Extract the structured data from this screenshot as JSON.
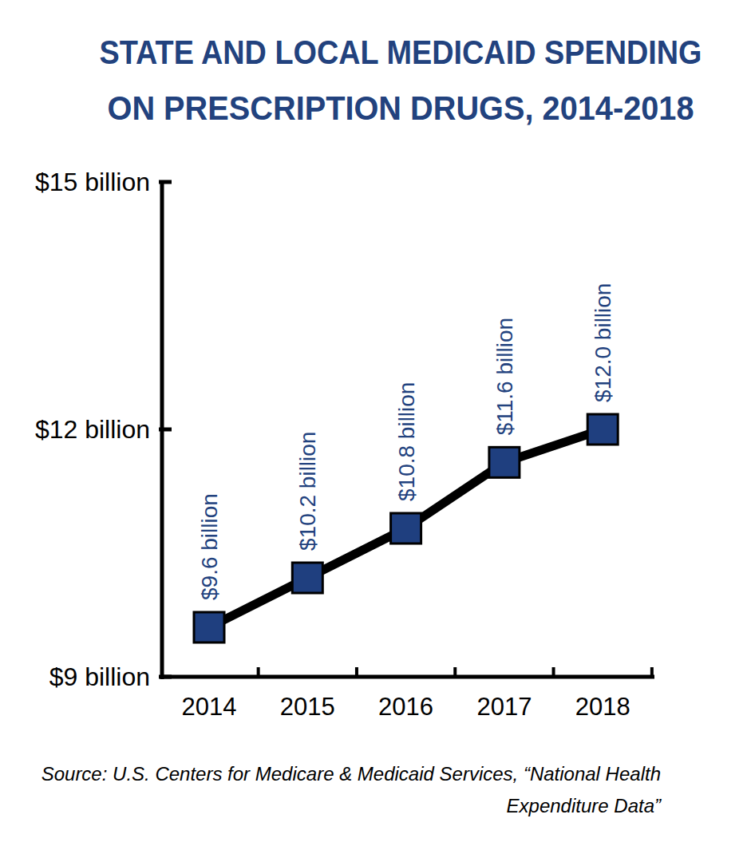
{
  "chart_data": {
    "type": "line",
    "title": [
      "STATE AND LOCAL MEDICAID SPENDING",
      "ON PRESCRIPTION DRUGS, 2014-2018"
    ],
    "categories": [
      "2014",
      "2015",
      "2016",
      "2017",
      "2018"
    ],
    "values": [
      9.6,
      10.2,
      10.8,
      11.6,
      12.0
    ],
    "value_labels": [
      "$9.6 billion",
      "$10.2 billion",
      "$10.8 billion",
      "$11.6 billion",
      "$12.0 billion"
    ],
    "data_labels": true,
    "color": "#1f3f7f",
    "marker": "square",
    "ylim": [
      9,
      15
    ],
    "yticks": [
      {
        "value": 9,
        "label": "$9 billion"
      },
      {
        "value": 12,
        "label": "$12 billion"
      },
      {
        "value": 15,
        "label": "$15 billion"
      }
    ],
    "grid": false,
    "source": [
      "Source: U.S. Centers for Medicare & Medicaid Services, “National Health",
      "Expenditure Data”"
    ]
  }
}
